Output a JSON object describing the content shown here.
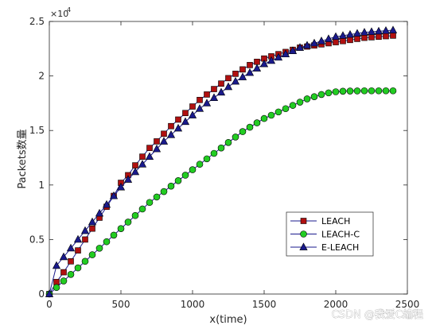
{
  "chart_data": {
    "type": "line",
    "title": "",
    "xlabel": "x(time)",
    "ylabel": "Packets数量",
    "y_exponent_label": "×10",
    "y_exponent_power": "4",
    "xlim": [
      0,
      2500
    ],
    "ylim": [
      0,
      25000
    ],
    "x_ticks": [
      0,
      500,
      1000,
      1500,
      2000,
      2500
    ],
    "x_tick_labels": [
      "0",
      "500",
      "1000",
      "1500",
      "2000",
      "2500"
    ],
    "y_ticks": [
      0,
      5000,
      10000,
      15000,
      20000,
      25000
    ],
    "y_tick_labels": [
      "0",
      "0.5",
      "1",
      "1.5",
      "2",
      "2.5"
    ],
    "grid": false,
    "legend_position": "lower-right",
    "x": [
      0,
      50,
      100,
      150,
      200,
      250,
      300,
      350,
      400,
      450,
      500,
      550,
      600,
      650,
      700,
      750,
      800,
      850,
      900,
      950,
      1000,
      1050,
      1100,
      1150,
      1200,
      1250,
      1300,
      1350,
      1400,
      1450,
      1500,
      1550,
      1600,
      1650,
      1700,
      1750,
      1800,
      1850,
      1900,
      1950,
      2000,
      2050,
      2100,
      2150,
      2200,
      2250,
      2300,
      2350,
      2400
    ],
    "series": [
      {
        "name": "LEACH",
        "color": "#b01010",
        "line_color": "#1a1a8c",
        "marker": "square",
        "values": [
          0,
          1100,
          2000,
          3000,
          4000,
          5000,
          6000,
          7000,
          8000,
          9000,
          10200,
          10900,
          11800,
          12600,
          13400,
          14000,
          14700,
          15400,
          16000,
          16600,
          17200,
          17800,
          18300,
          18800,
          19300,
          19800,
          20200,
          20600,
          21000,
          21300,
          21600,
          21800,
          22000,
          22200,
          22400,
          22600,
          22700,
          22800,
          22900,
          23000,
          23100,
          23200,
          23300,
          23400,
          23500,
          23550,
          23600,
          23650,
          23700
        ]
      },
      {
        "name": "LEACH-C",
        "color": "#22cc22",
        "line_color": "#1a1a8c",
        "marker": "circle",
        "values": [
          0,
          600,
          1200,
          1800,
          2400,
          3000,
          3600,
          4200,
          4800,
          5400,
          6000,
          6600,
          7200,
          7800,
          8400,
          8900,
          9400,
          9900,
          10400,
          10900,
          11400,
          11900,
          12400,
          12900,
          13400,
          13900,
          14400,
          14900,
          15300,
          15700,
          16100,
          16400,
          16700,
          17000,
          17300,
          17600,
          17900,
          18100,
          18300,
          18450,
          18550,
          18600,
          18620,
          18630,
          18640,
          18640,
          18640,
          18640,
          18640
        ]
      },
      {
        "name": "E-LEACH",
        "color": "#1a1a8c",
        "line_color": "#1a1a8c",
        "marker": "triangle",
        "values": [
          0,
          2600,
          3400,
          4200,
          5000,
          5800,
          6600,
          7400,
          8200,
          9000,
          9800,
          10500,
          11200,
          11900,
          12600,
          13300,
          14000,
          14600,
          15200,
          15800,
          16400,
          17000,
          17500,
          18000,
          18500,
          19000,
          19500,
          19900,
          20300,
          20700,
          21100,
          21400,
          21700,
          22000,
          22300,
          22600,
          22800,
          23000,
          23200,
          23400,
          23600,
          23700,
          23800,
          23900,
          24000,
          24050,
          24100,
          24150,
          24200
        ]
      }
    ]
  },
  "watermark": {
    "text": "CSDN @我爱C编程"
  }
}
